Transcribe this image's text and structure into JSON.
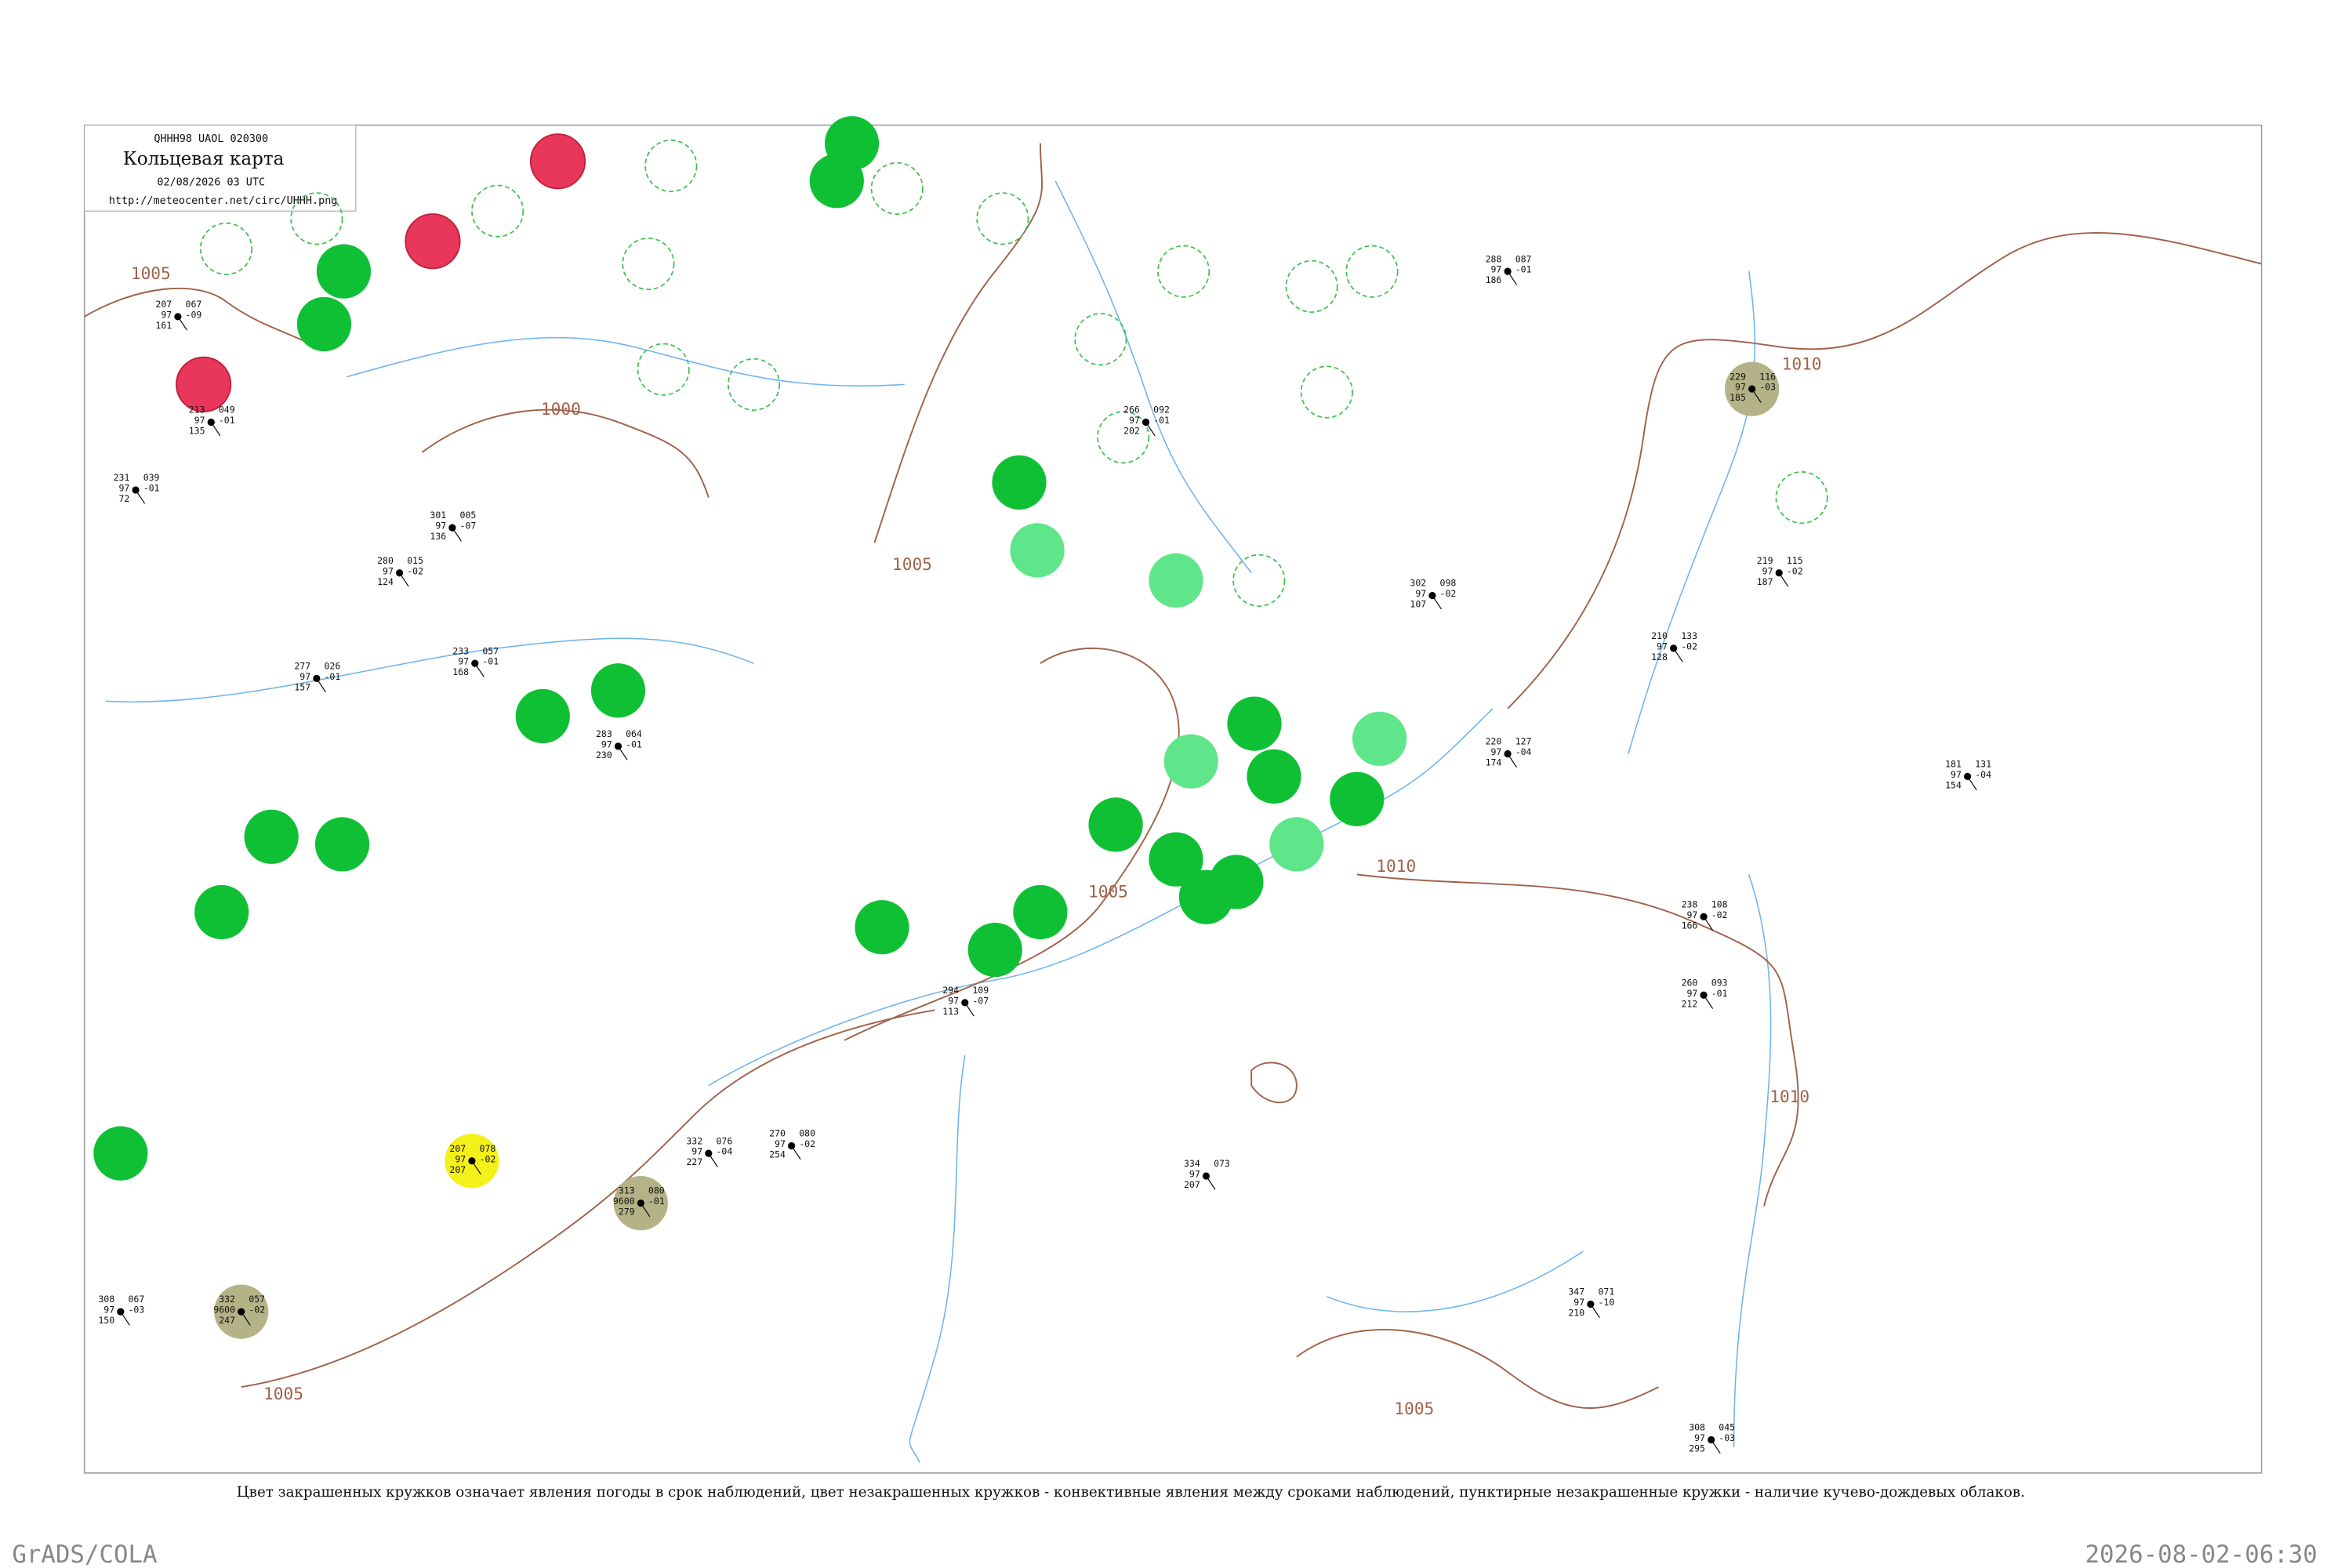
{
  "header": {
    "code": "QHHH98  UAOL  020300",
    "title": "Кольцевая карта",
    "datetime": "02/08/2026 03 UTC",
    "url": "http://meteocenter.net/circ/UHHH.png"
  },
  "isobars": [
    "1005",
    "1000",
    "1005",
    "1005",
    "1010",
    "1010",
    "1010",
    "1005",
    "1005"
  ],
  "stations": [
    {
      "left": [
        "213",
        "97",
        "135"
      ],
      "right": [
        "049",
        "-01"
      ]
    },
    {
      "left": [
        "207",
        "97",
        "161"
      ],
      "right": [
        "067",
        "-09"
      ]
    },
    {
      "left": [
        "280",
        "97",
        "124"
      ],
      "right": [
        "015",
        "-02"
      ]
    },
    {
      "left": [
        "277",
        "97",
        "157"
      ],
      "right": [
        "026",
        "-01"
      ]
    },
    {
      "left": [
        "231",
        "97",
        "72"
      ],
      "right": [
        "039",
        "-01"
      ]
    },
    {
      "left": [
        "301",
        "97",
        "136"
      ],
      "right": [
        "005",
        "-07"
      ]
    },
    {
      "left": [
        "233",
        "97",
        "168"
      ],
      "right": [
        "057",
        "-01"
      ]
    },
    {
      "left": [
        "283",
        "97",
        "230"
      ],
      "right": [
        "064",
        "-01"
      ]
    },
    {
      "left": [
        "294",
        "97",
        "113"
      ],
      "right": [
        "109",
        "-07"
      ]
    },
    {
      "left": [
        "219",
        "97",
        "187"
      ],
      "right": [
        "115",
        "-02"
      ]
    },
    {
      "left": [
        "210",
        "97",
        "128"
      ],
      "right": [
        "133",
        "-02"
      ]
    },
    {
      "left": [
        "220",
        "97",
        "174"
      ],
      "right": [
        "127",
        "-04"
      ]
    },
    {
      "left": [
        "181",
        "97",
        "154"
      ],
      "right": [
        "131",
        "-04"
      ]
    },
    {
      "left": [
        "347",
        "97",
        "210"
      ],
      "right": [
        "071",
        "-10"
      ]
    },
    {
      "left": [
        "308",
        "97",
        "295"
      ],
      "right": [
        "045",
        "-03"
      ]
    },
    {
      "left": [
        "334",
        "97",
        "207"
      ],
      "right": [
        "073"
      ]
    },
    {
      "left": [
        "332",
        "97",
        "227"
      ],
      "right": [
        "076",
        "-04"
      ]
    },
    {
      "left": [
        "270",
        "97",
        "254"
      ],
      "right": [
        "080",
        "-02"
      ]
    },
    {
      "left": [
        "308",
        "97",
        "150"
      ],
      "right": [
        "067",
        "-03"
      ]
    },
    {
      "left": [
        "266",
        "97",
        "202"
      ],
      "right": [
        "092",
        "-01"
      ]
    },
    {
      "left": [
        "288",
        "97",
        "186"
      ],
      "right": [
        "087",
        "-01"
      ]
    },
    {
      "left": [
        "229",
        "97",
        "185"
      ],
      "right": [
        "116",
        "-03"
      ]
    },
    {
      "left": [
        "207",
        "97",
        "207"
      ],
      "right": [
        "078",
        "-02"
      ]
    },
    {
      "left": [
        "313",
        "9600",
        "279"
      ],
      "right": [
        "080",
        "-01"
      ]
    },
    {
      "left": [
        "332",
        "9600",
        "247"
      ],
      "right": [
        "057",
        "-02"
      ]
    },
    {
      "left": [
        "302",
        "97",
        "107"
      ],
      "right": [
        "098",
        "-02"
      ]
    },
    {
      "left": [
        "238",
        "97",
        "166"
      ],
      "right": [
        "108",
        "-02"
      ]
    },
    {
      "left": [
        "260",
        "97",
        "212"
      ],
      "right": [
        "093",
        "-01"
      ]
    }
  ],
  "caption": "Цвет закрашенных кружков означает явления погоды в срок наблюдений, цвет незакрашенных кружков - конвективные явления между сроками наблюдений, пунктирные незакрашенные кружки - наличие кучево-дождевых облаков.",
  "footer": {
    "left": "GrADS/COLA",
    "right": "2026-08-02-06:30"
  }
}
